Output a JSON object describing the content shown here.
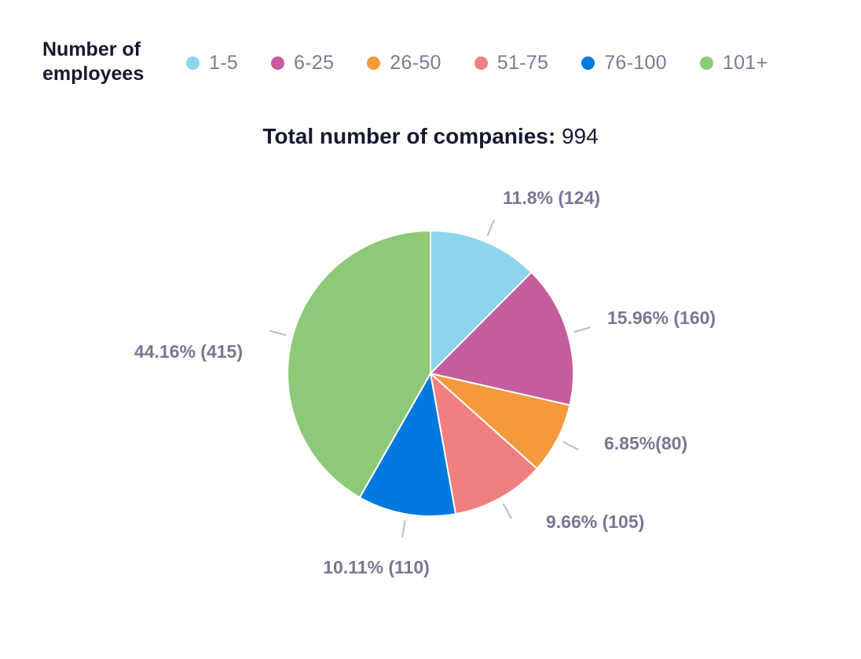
{
  "legend": {
    "title": "Number of employees"
  },
  "header": {
    "total_label": "Total number of companies:",
    "total_value": "994"
  },
  "chart_data": {
    "type": "pie",
    "title": "Total number of companies: 994",
    "legend_title": "Number of employees",
    "legend_position": "top",
    "start_angle_deg": 0,
    "direction": "clockwise",
    "slices": [
      {
        "category": "1-5",
        "value": 124,
        "percent": 11.8,
        "label": "11.8% (124)",
        "color": "#8dd5ec"
      },
      {
        "category": "6-25",
        "value": 160,
        "percent": 15.96,
        "label": "15.96% (160)",
        "color": "#c55d9d"
      },
      {
        "category": "26-50",
        "value": 80,
        "percent": 6.85,
        "label": "6.85%(80)",
        "color": "#f5993d"
      },
      {
        "category": "51-75",
        "value": 105,
        "percent": 9.66,
        "label": "9.66% (105)",
        "color": "#f27f7f"
      },
      {
        "category": "76-100",
        "value": 110,
        "percent": 10.11,
        "label": "10.11% (110)",
        "color": "#0279de"
      },
      {
        "category": "101+",
        "value": 415,
        "percent": 44.16,
        "label": "44.16% (415)",
        "color": "#8ec97a"
      }
    ]
  }
}
